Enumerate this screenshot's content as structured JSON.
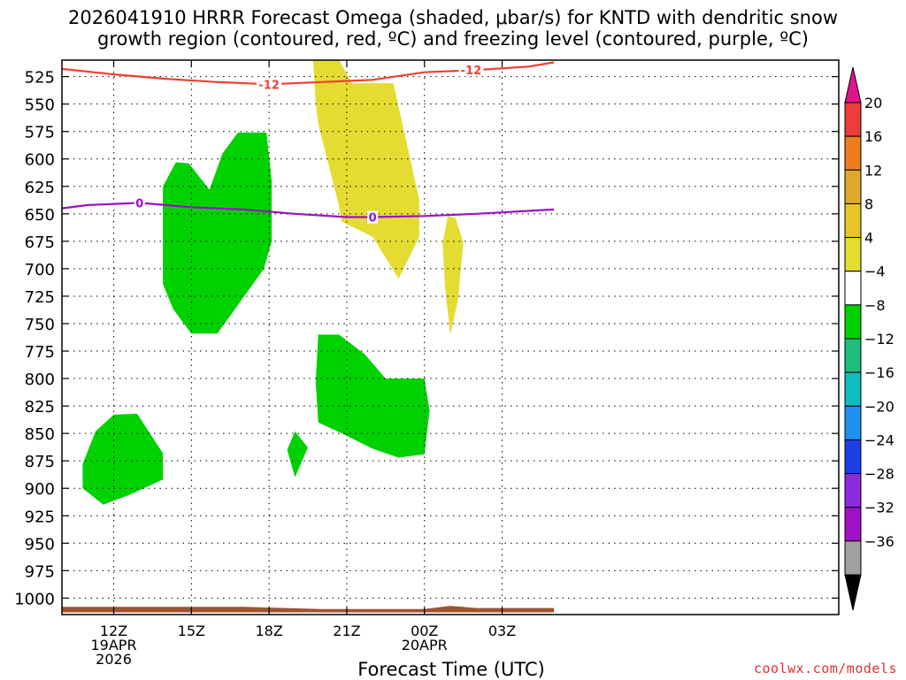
{
  "chart_data": {
    "type": "heatmap",
    "title": "2026041910 HRRR Forecast Omega (shaded, μbar/s) for KNTD with dendritic snow\ngrowth region (contoured, red, ºC) and freezing level (contoured, purple, ºC)",
    "title_line1": "2026041910 HRRR Forecast Omega (shaded, μbar/s) for KNTD with dendritic snow",
    "title_line2": "growth region (contoured, red, ºC) and freezing level (contoured, purple, ºC)",
    "xlabel": "Forecast Time (UTC)",
    "ylabel": "",
    "credit": "coolwx.com/models",
    "x_unit": "hours from 2026-04-19 10Z",
    "xlim": [
      10,
      40
    ],
    "ylim": [
      1015,
      510
    ],
    "y_ticks": [
      525,
      550,
      575,
      600,
      625,
      650,
      675,
      700,
      725,
      750,
      775,
      800,
      825,
      850,
      875,
      900,
      925,
      950,
      975,
      1000
    ],
    "x_ticks": [
      {
        "x": 12,
        "lines": [
          "12Z",
          "19APR",
          "2026"
        ]
      },
      {
        "x": 15,
        "lines": [
          "15Z"
        ]
      },
      {
        "x": 18,
        "lines": [
          "18Z"
        ]
      },
      {
        "x": 21,
        "lines": [
          "21Z"
        ]
      },
      {
        "x": 24,
        "lines": [
          "00Z",
          "20APR"
        ]
      },
      {
        "x": 27,
        "lines": [
          "03Z"
        ]
      }
    ],
    "grid": true,
    "colorbar": {
      "labels": [
        "20",
        "16",
        "12",
        "8",
        "4",
        "−4",
        "−8",
        "−12",
        "−16",
        "−20",
        "−24",
        "−28",
        "−32",
        "−36"
      ],
      "colors": [
        "#ee3b3b",
        "#ee7d20",
        "#e0a92c",
        "#e6c528",
        "#e5dc32",
        "#ffffff",
        "#00d200",
        "#1ebd7c",
        "#10bcbc",
        "#1e90f0",
        "#1e3fe6",
        "#8a2be2",
        "#a010c8",
        "#a0a0a0"
      ],
      "top_color": "#e0148c",
      "bottom_color": "#000000"
    },
    "shaded_regions": [
      {
        "value": "4 to 8",
        "color": "#e5dc32",
        "points": [
          [
            19.7,
            510
          ],
          [
            20.7,
            510
          ],
          [
            21.2,
            531
          ],
          [
            22.8,
            531
          ],
          [
            23.8,
            637
          ],
          [
            23.8,
            671
          ],
          [
            23.0,
            709
          ],
          [
            22.0,
            671
          ],
          [
            20.8,
            657
          ],
          [
            20.7,
            643
          ],
          [
            19.9,
            568
          ],
          [
            19.8,
            549
          ]
        ]
      },
      {
        "value": "4 to 8",
        "color": "#e5dc32",
        "points": [
          [
            24.7,
            677
          ],
          [
            24.9,
            652
          ],
          [
            25.2,
            654
          ],
          [
            25.5,
            676
          ],
          [
            25.3,
            728
          ],
          [
            25.0,
            760
          ],
          [
            24.8,
            718
          ]
        ]
      },
      {
        "value": "-4 to -8",
        "color": "#00d200",
        "points": [
          [
            13.9,
            625
          ],
          [
            14.4,
            603
          ],
          [
            14.9,
            604
          ],
          [
            15.7,
            628
          ],
          [
            16.2,
            595
          ],
          [
            16.8,
            576
          ],
          [
            17.9,
            576
          ],
          [
            18.1,
            620
          ],
          [
            18.1,
            675
          ],
          [
            17.8,
            700
          ],
          [
            16.8,
            733
          ],
          [
            16.0,
            759
          ],
          [
            15.0,
            759
          ],
          [
            14.3,
            737
          ],
          [
            13.9,
            714
          ],
          [
            13.9,
            655
          ]
        ]
      },
      {
        "value": "-4 to -8",
        "color": "#00d200",
        "points": [
          [
            19.9,
            760
          ],
          [
            20.7,
            760
          ],
          [
            21.7,
            778
          ],
          [
            22.5,
            800
          ],
          [
            24.0,
            800
          ],
          [
            24.2,
            829
          ],
          [
            24.0,
            869
          ],
          [
            23.0,
            872
          ],
          [
            22.0,
            864
          ],
          [
            20.9,
            851
          ],
          [
            19.9,
            840
          ],
          [
            19.8,
            803
          ]
        ]
      },
      {
        "value": "-4 to -8",
        "color": "#00d200",
        "points": [
          [
            10.8,
            878
          ],
          [
            11.3,
            848
          ],
          [
            12.0,
            833
          ],
          [
            12.9,
            832
          ],
          [
            13.9,
            868
          ],
          [
            13.9,
            892
          ],
          [
            12.6,
            906
          ],
          [
            11.6,
            915
          ],
          [
            10.8,
            900
          ]
        ]
      },
      {
        "value": "-4 to -8",
        "color": "#00d200",
        "points": [
          [
            18.7,
            865
          ],
          [
            19.0,
            848
          ],
          [
            19.5,
            863
          ],
          [
            19.0,
            890
          ]
        ]
      }
    ],
    "series": [
      {
        "name": "-12",
        "color": "#f04030",
        "x": [
          10,
          12,
          14,
          16,
          18,
          20,
          22,
          24,
          26,
          28,
          29
        ],
        "y": [
          518,
          523,
          527,
          530,
          532,
          530,
          528,
          521,
          519,
          516,
          512
        ]
      },
      {
        "name": "0",
        "color": "#9a10c8",
        "x": [
          10,
          11,
          13,
          15,
          17,
          19,
          21,
          22,
          24,
          26,
          29
        ],
        "y": [
          645,
          642,
          640,
          644,
          646,
          650,
          653,
          653,
          652,
          650,
          646
        ]
      }
    ],
    "contour_labels": [
      {
        "text": "-12",
        "x": 18.0,
        "y": 532,
        "color": "#f04030"
      },
      {
        "text": "-12",
        "x": 25.8,
        "y": 519,
        "color": "#f04030"
      },
      {
        "text": "0",
        "x": 13.0,
        "y": 640,
        "color": "#9a10c8"
      },
      {
        "text": "0",
        "x": 22.0,
        "y": 653,
        "color": "#9a10c8"
      }
    ],
    "terrain": {
      "color": "#a0522d",
      "base": 1013,
      "x": [
        10,
        17,
        20,
        24,
        25,
        26,
        29
      ],
      "y": [
        1008,
        1008,
        1010,
        1010,
        1007,
        1009,
        1009
      ]
    }
  }
}
